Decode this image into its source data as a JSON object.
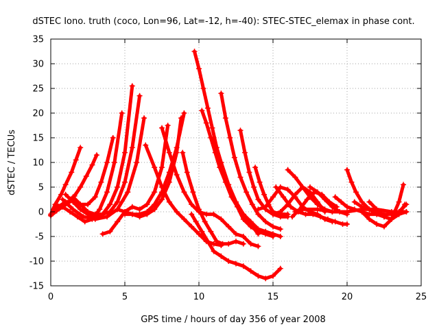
{
  "chart_data": {
    "type": "scatter",
    "title": "dSTEC Iono. truth (coco, Lon=96, Lat=-12, h=-40): STEC-STEC_elemax in phase cont.",
    "xlabel": "GPS time / hours of day 356 of year 2008",
    "ylabel": "dSTEC  / TECUs",
    "xlim": [
      0,
      25
    ],
    "ylim": [
      -15,
      35
    ],
    "xticks": [
      0,
      5,
      10,
      15,
      20,
      25
    ],
    "yticks": [
      -15,
      -10,
      -5,
      0,
      5,
      10,
      15,
      20,
      25,
      30,
      35
    ],
    "grid": true,
    "marker": "plus",
    "color": "#ff0000",
    "series": [
      {
        "x": [
          0.0,
          0.3,
          0.7,
          1.0,
          1.4,
          1.7,
          2.0
        ],
        "y": [
          -0.5,
          1.5,
          3.5,
          5.5,
          8.0,
          10.5,
          13.0
        ]
      },
      {
        "x": [
          0.0,
          0.4,
          0.8,
          1.2,
          1.6,
          2.0,
          2.4,
          2.8,
          3.1
        ],
        "y": [
          -0.8,
          0.2,
          1.0,
          1.8,
          3.2,
          5.0,
          7.2,
          9.5,
          11.5
        ]
      },
      {
        "x": [
          0.0,
          0.5,
          1.0,
          1.5,
          2.0,
          2.5,
          3.0,
          3.4,
          3.8,
          4.2
        ],
        "y": [
          -0.5,
          1.0,
          2.0,
          2.2,
          1.5,
          1.5,
          3.0,
          6.0,
          10.0,
          15.0
        ]
      },
      {
        "x": [
          0.3,
          0.8,
          1.3,
          1.8,
          2.3,
          2.8,
          3.3,
          3.8,
          4.3,
          4.8
        ],
        "y": [
          1.5,
          1.0,
          0.0,
          -1.0,
          -2.0,
          -1.5,
          0.5,
          4.0,
          10.0,
          20.0
        ]
      },
      {
        "x": [
          1.0,
          1.5,
          2.0,
          2.5,
          3.0,
          3.5,
          4.0,
          4.5,
          5.0,
          5.5
        ],
        "y": [
          3.5,
          2.0,
          0.5,
          -0.5,
          -1.0,
          -0.5,
          1.5,
          5.0,
          12.0,
          25.5
        ]
      },
      {
        "x": [
          1.5,
          2.0,
          2.5,
          3.0,
          3.5,
          4.0,
          4.5,
          5.0,
          5.5,
          6.0
        ],
        "y": [
          3.0,
          1.5,
          0.0,
          -0.5,
          -0.5,
          0.0,
          2.0,
          6.0,
          13.0,
          23.5
        ]
      },
      {
        "x": [
          0.8,
          1.5,
          2.2,
          3.0,
          3.8,
          4.5,
          5.2,
          5.8,
          6.3
        ],
        "y": [
          2.5,
          0.5,
          -1.0,
          -1.5,
          -1.0,
          0.5,
          4.0,
          10.0,
          19.0
        ]
      },
      {
        "x": [
          3.5,
          4.0,
          4.5,
          5.0,
          5.5,
          6.0,
          6.5,
          7.0,
          7.5,
          7.9
        ],
        "y": [
          -4.5,
          -4.0,
          -2.0,
          0.0,
          1.0,
          0.5,
          1.5,
          4.0,
          9.0,
          17.5
        ]
      },
      {
        "x": [
          4.5,
          5.0,
          5.5,
          6.0,
          6.5,
          7.0,
          7.5,
          8.0,
          8.5,
          9.0
        ],
        "y": [
          0.5,
          0.0,
          -0.5,
          -0.5,
          0.0,
          1.5,
          4.0,
          8.0,
          13.0,
          20.0
        ]
      },
      {
        "x": [
          5.0,
          5.5,
          6.0,
          6.5,
          7.0,
          7.5,
          8.0,
          8.5,
          8.8
        ],
        "y": [
          -0.5,
          -0.5,
          -1.0,
          -0.5,
          0.5,
          2.5,
          6.0,
          12.0,
          19.0
        ]
      },
      {
        "x": [
          6.4,
          7.0,
          7.5,
          8.0,
          8.5,
          9.0,
          9.5,
          10.0,
          10.5,
          11.0,
          11.5
        ],
        "y": [
          13.5,
          9.0,
          5.0,
          2.0,
          0.0,
          -1.5,
          -3.0,
          -4.5,
          -6.0,
          -6.5,
          -6.8
        ]
      },
      {
        "x": [
          7.5,
          8.0,
          8.5,
          9.0,
          9.5,
          10.0,
          10.5,
          11.0,
          11.5,
          12.0,
          12.5,
          13.0,
          13.5,
          14.0
        ],
        "y": [
          17.0,
          12.0,
          7.5,
          4.0,
          1.5,
          0.0,
          -0.5,
          -0.5,
          -1.5,
          -3.0,
          -4.5,
          -5.0,
          -6.5,
          -7.0
        ]
      },
      {
        "x": [
          8.9,
          9.2,
          9.6,
          10.0,
          10.4,
          10.8,
          11.2,
          11.6,
          12.0,
          12.5,
          13.0
        ],
        "y": [
          12.0,
          8.0,
          4.0,
          0.5,
          -2.0,
          -4.0,
          -6.0,
          -6.5,
          -6.5,
          -6.0,
          -6.5
        ]
      },
      {
        "x": [
          9.7,
          10.0,
          10.3,
          10.6,
          10.9,
          11.2,
          11.5,
          11.8,
          12.2,
          12.6,
          13.0,
          13.5,
          14.0
        ],
        "y": [
          32.5,
          29.0,
          25.0,
          21.0,
          17.0,
          13.0,
          9.0,
          6.0,
          3.0,
          1.0,
          -0.5,
          -2.5,
          -4.5
        ]
      },
      {
        "x": [
          10.2,
          10.5,
          10.8,
          11.1,
          11.4,
          11.8,
          12.2,
          12.6,
          13.0,
          13.5,
          14.0,
          14.5,
          15.0
        ],
        "y": [
          20.5,
          18.0,
          15.0,
          12.0,
          9.0,
          6.0,
          3.5,
          1.0,
          -1.5,
          -3.0,
          -4.0,
          -4.5,
          -5.0
        ]
      },
      {
        "x": [
          11.0,
          11.5,
          12.0,
          12.5,
          13.0,
          13.5,
          14.0,
          14.5,
          15.0,
          15.5
        ],
        "y": [
          15.0,
          10.0,
          5.5,
          2.0,
          -0.5,
          -2.0,
          -3.5,
          -4.0,
          -4.5,
          -5.0
        ]
      },
      {
        "x": [
          11.5,
          11.8,
          12.1,
          12.4,
          12.8,
          13.2,
          13.6,
          14.0,
          14.5,
          15.0,
          15.5
        ],
        "y": [
          24.0,
          19.0,
          15.0,
          11.0,
          7.0,
          4.0,
          1.5,
          -0.5,
          -2.0,
          -3.0,
          -3.5
        ]
      },
      {
        "x": [
          9.5,
          9.8,
          10.2,
          10.6,
          11.0,
          11.5,
          12.0,
          12.5,
          13.0,
          13.5,
          14.0,
          14.5,
          15.0,
          15.5
        ],
        "y": [
          -0.5,
          -2.0,
          -4.0,
          -6.0,
          -8.0,
          -9.0,
          -10.0,
          -10.5,
          -11.0,
          -12.0,
          -13.0,
          -13.5,
          -13.0,
          -11.5
        ]
      },
      {
        "x": [
          12.8,
          13.1,
          13.4,
          13.7,
          14.0,
          14.5,
          15.0,
          15.5,
          16.0
        ],
        "y": [
          16.5,
          12.0,
          8.0,
          5.0,
          2.5,
          0.5,
          -0.5,
          -1.0,
          -1.0
        ]
      },
      {
        "x": [
          13.8,
          14.1,
          14.4,
          14.7,
          15.0,
          15.5,
          16.0
        ],
        "y": [
          9.0,
          6.0,
          3.5,
          1.5,
          0.0,
          -0.5,
          -0.5
        ]
      },
      {
        "x": [
          14.0,
          14.5,
          15.0,
          15.5,
          16.0,
          16.5,
          17.0,
          17.5,
          18.0,
          18.5,
          19.0
        ],
        "y": [
          0.5,
          1.0,
          3.0,
          5.0,
          4.5,
          3.0,
          1.0,
          0.0,
          -0.5,
          -1.5,
          -2.0
        ]
      },
      {
        "x": [
          15.2,
          15.7,
          16.2,
          16.7,
          17.2,
          17.7,
          18.2,
          18.7,
          19.2,
          19.7,
          20.0
        ],
        "y": [
          5.0,
          3.0,
          1.0,
          0.0,
          -0.5,
          -0.5,
          -1.0,
          -1.5,
          -2.0,
          -2.5,
          -2.5
        ]
      },
      {
        "x": [
          15.0,
          15.5,
          16.0,
          16.5,
          17.0,
          17.5,
          18.0,
          18.5
        ],
        "y": [
          -0.5,
          0.0,
          1.5,
          3.5,
          5.0,
          4.0,
          2.0,
          0.0
        ]
      },
      {
        "x": [
          16.0,
          16.5,
          17.0,
          17.5,
          18.0,
          18.5,
          19.0
        ],
        "y": [
          8.5,
          7.0,
          5.0,
          3.0,
          1.5,
          0.5,
          0.0
        ]
      },
      {
        "x": [
          16.3,
          16.8,
          17.3,
          17.8,
          18.3,
          18.8,
          19.3
        ],
        "y": [
          -1.0,
          0.5,
          2.5,
          4.0,
          3.5,
          2.0,
          1.0
        ]
      },
      {
        "x": [
          17.5,
          18.0,
          18.5,
          19.0,
          19.5,
          20.0
        ],
        "y": [
          5.0,
          4.0,
          2.5,
          1.0,
          0.0,
          -0.5
        ]
      },
      {
        "x": [
          19.2,
          19.6,
          20.0,
          20.5,
          21.0,
          21.5,
          22.0
        ],
        "y": [
          3.0,
          2.0,
          1.0,
          0.5,
          0.0,
          -0.5,
          -0.5
        ]
      },
      {
        "x": [
          20.0,
          20.3,
          20.6,
          21.0,
          21.5,
          22.0,
          22.5,
          23.0,
          23.5,
          24.0
        ],
        "y": [
          8.5,
          6.0,
          4.0,
          2.0,
          0.5,
          -0.5,
          -1.0,
          -1.5,
          -0.5,
          0.0
        ]
      },
      {
        "x": [
          20.5,
          21.0,
          21.5,
          22.0,
          22.5,
          23.0,
          23.5,
          24.0
        ],
        "y": [
          2.0,
          1.0,
          0.5,
          0.0,
          -0.5,
          -0.5,
          0.0,
          1.5
        ]
      },
      {
        "x": [
          21.5,
          22.0,
          22.5,
          23.0,
          23.5,
          23.9
        ],
        "y": [
          2.0,
          0.5,
          -1.0,
          -1.5,
          -0.5,
          1.5
        ]
      },
      {
        "x": [
          21.0,
          21.5,
          22.0,
          22.5,
          23.0,
          23.5,
          23.8
        ],
        "y": [
          0.0,
          -1.5,
          -2.5,
          -3.0,
          -1.5,
          2.0,
          5.5
        ]
      },
      {
        "x": [
          16.5,
          17.0,
          18.0,
          19.0,
          20.0,
          21.0,
          22.0,
          23.0,
          24.0
        ],
        "y": [
          0.0,
          0.5,
          0.5,
          0.0,
          0.0,
          0.5,
          0.5,
          0.0,
          0.0
        ]
      }
    ]
  }
}
